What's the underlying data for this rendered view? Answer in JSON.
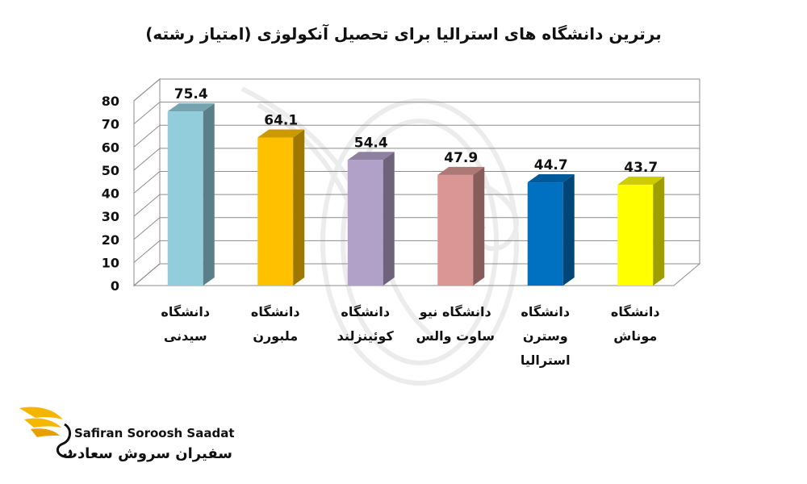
{
  "chart_data": {
    "type": "bar",
    "title": "برترین دانشگاه های استرالیا برای تحصیل آنکولوژی (امتیاز رشته)",
    "categories": [
      "دانشگاه سیدنی",
      "دانشگاه ملبورن",
      "دانشگاه کوئینزلند",
      "دانشگاه نیو ساوت والس",
      "دانشگاه وسترن استرالیا",
      "دانشگاه موناش"
    ],
    "category_lines": [
      [
        "دانشگاه",
        "سیدنی"
      ],
      [
        "دانشگاه",
        "ملبورن"
      ],
      [
        "دانشگاه",
        "کوئینزلند"
      ],
      [
        "دانشگاه نیو",
        "ساوت والس"
      ],
      [
        "دانشگاه",
        "وسترن",
        "استرالیا"
      ],
      [
        "دانشگاه",
        "موناش"
      ]
    ],
    "values": [
      75.4,
      64.1,
      54.4,
      47.9,
      44.7,
      43.7
    ],
    "value_labels": [
      "75.4",
      "64.1",
      "54.4",
      "47.9",
      "44.7",
      "43.7"
    ],
    "colors": [
      "#92CDDC",
      "#FFC000",
      "#B1A0C7",
      "#DA9694",
      "#0070C0",
      "#FFFF00"
    ],
    "yticks": [
      0,
      10,
      20,
      30,
      40,
      50,
      60,
      70,
      80
    ],
    "ylim": [
      0,
      80
    ],
    "grid": true,
    "legend": "none",
    "style": "3d-bar"
  },
  "logo": {
    "name_en": "Safiran Soroosh Saadat",
    "name_fa": "سفیران سروش سعادت",
    "colors": [
      "#F4B400",
      "#E8A000"
    ]
  },
  "watermark": {
    "icon": "bird-logo-watermark"
  }
}
